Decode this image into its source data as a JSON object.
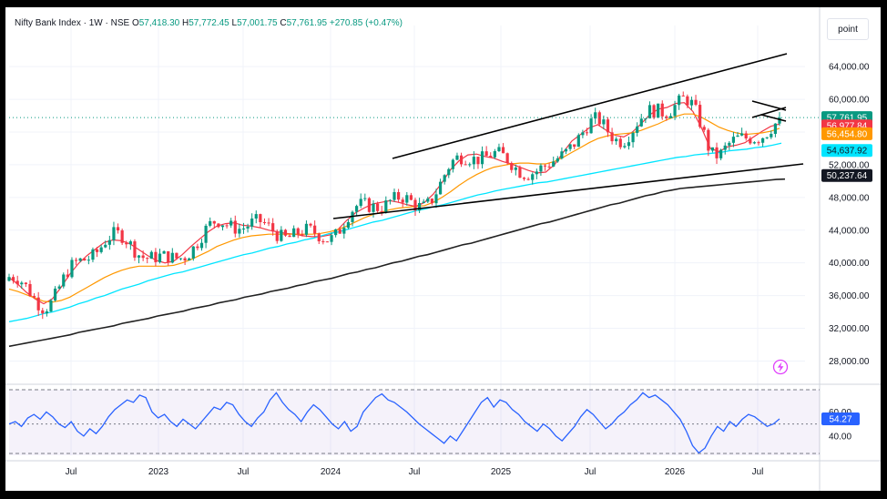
{
  "legend": {
    "symbol": "Nifty Bank Index",
    "interval": "1W",
    "exchange": "NSE",
    "open_label": "O",
    "open": "57,418.30",
    "high_label": "H",
    "high": "57,772.45",
    "low_label": "L",
    "low": "57,001.75",
    "close_label": "C",
    "close": "57,761.95",
    "change": "+270.85 (+0.47%)"
  },
  "unit_label": "point",
  "chart_data": [
    {
      "type": "line",
      "subtype": "candlestick",
      "x_tick_labels": [
        "Jul",
        "2023",
        "Jul",
        "2024",
        "Jul",
        "2025",
        "Jul",
        "2026",
        "Jul"
      ],
      "y_tick_labels": [
        "64,000.00",
        "60,000.00",
        "56,000.00",
        "52,000.00",
        "48,000.00",
        "44,000.00",
        "40,000.00",
        "36,000.00",
        "32,000.00",
        "28,000.00"
      ],
      "ylim": [
        25600,
        66800
      ],
      "last_close": 57761.95,
      "series": [
        {
          "values": [
            38200,
            37400,
            36400,
            35600,
            35000,
            35600,
            37000,
            38600,
            39900,
            40900,
            41700,
            42500,
            42800,
            42700,
            42300,
            41600,
            40900,
            40300,
            40000,
            40200,
            41000,
            42000,
            42900,
            43800,
            44500,
            44800,
            44900,
            44600,
            44500,
            44300,
            44000,
            43800,
            43600,
            43500,
            43300,
            43200,
            43200,
            43400,
            44100,
            45200,
            46100,
            46700,
            47200,
            47400,
            47600,
            47400,
            47100,
            46900,
            47400,
            48400,
            49800,
            51400,
            52500,
            53200,
            53300,
            53000,
            52800,
            52400,
            52100,
            51700,
            51300,
            51000,
            51100,
            52000,
            53500,
            54900,
            55700,
            56500,
            56900,
            56200,
            55600,
            55400,
            56000,
            57000,
            58100,
            58800,
            59000,
            59500,
            59600,
            58500,
            56500,
            54000,
            53600,
            54200,
            54400,
            54700,
            55400,
            56100,
            56700,
            56977.84
          ]
        },
        {
          "values": [
            36800,
            36500,
            36100,
            35700,
            35300,
            35200,
            35400,
            35800,
            36400,
            37000,
            37600,
            38200,
            38700,
            39100,
            39400,
            39600,
            39600,
            39600,
            39600,
            39700,
            40000,
            40400,
            40900,
            41400,
            42000,
            42400,
            42800,
            43100,
            43300,
            43400,
            43500,
            43500,
            43500,
            43500,
            43500,
            43500,
            43600,
            43800,
            44100,
            44500,
            45000,
            45500,
            45900,
            46200,
            46500,
            46700,
            46800,
            46900,
            47000,
            47400,
            48000,
            48700,
            49500,
            50200,
            50800,
            51300,
            51700,
            51900,
            52100,
            52200,
            52200,
            52100,
            52100,
            52400,
            52900,
            53500,
            54100,
            54700,
            55200,
            55500,
            55700,
            55800,
            55900,
            56200,
            56600,
            57000,
            57500,
            57900,
            58200,
            58200,
            57800,
            57200,
            56600,
            56200,
            55900,
            55700,
            55800,
            55900,
            56100,
            56454.8
          ]
        },
        {
          "values": [
            32800,
            33000,
            33200,
            33500,
            33800,
            34000,
            34300,
            34600,
            35000,
            35300,
            35700,
            36000,
            36400,
            36800,
            37100,
            37400,
            37800,
            38100,
            38400,
            38700,
            38900,
            39200,
            39500,
            39800,
            40100,
            40400,
            40700,
            41000,
            41200,
            41500,
            41800,
            42000,
            42300,
            42500,
            42800,
            43000,
            43300,
            43600,
            43800,
            44100,
            44400,
            44700,
            45000,
            45200,
            45500,
            45800,
            46100,
            46400,
            46600,
            46900,
            47100,
            47400,
            47700,
            48000,
            48300,
            48500,
            48800,
            49000,
            49200,
            49400,
            49600,
            49800,
            49900,
            50100,
            50300,
            50500,
            50700,
            50900,
            51100,
            51300,
            51500,
            51700,
            51900,
            52100,
            52300,
            52500,
            52700,
            52900,
            53000,
            53200,
            53300,
            53400,
            53500,
            53700,
            53800,
            53900,
            54100,
            54200,
            54400,
            54637.92
          ]
        },
        {
          "values": [
            29800,
            30000,
            30200,
            30400,
            30600,
            30800,
            31000,
            31200,
            31500,
            31700,
            31900,
            32100,
            32300,
            32600,
            32800,
            33000,
            33200,
            33500,
            33700,
            33900,
            34100,
            34400,
            34600,
            34800,
            35100,
            35300,
            35500,
            35800,
            36000,
            36200,
            36500,
            36700,
            36900,
            37200,
            37400,
            37700,
            37900,
            38100,
            38400,
            38700,
            38900,
            39200,
            39400,
            39700,
            40000,
            40200,
            40500,
            40800,
            41000,
            41300,
            41600,
            41900,
            42200,
            42400,
            42700,
            43000,
            43300,
            43600,
            43900,
            44200,
            44500,
            44800,
            45000,
            45300,
            45600,
            45900,
            46200,
            46500,
            46800,
            47100,
            47300,
            47600,
            47900,
            48200,
            48400,
            48700,
            48900,
            49100,
            49200,
            49300,
            49400,
            49500,
            49600,
            49700,
            49800,
            49900,
            50000,
            50100,
            50200,
            50237.64
          ]
        }
      ],
      "last_value_labels": [
        "57,761.95",
        "56,977.84",
        "56,454.80",
        "54,637.92",
        "50,237.64"
      ],
      "colors": {
        "up": "#089981",
        "down": "#f23645",
        "ma_fast": "#f23645",
        "ma_mid": "#ff9800",
        "ma_slow": "#00e5ff",
        "ma_long": "#212121",
        "trendline": "#000000",
        "last_close": "#089981"
      }
    },
    {
      "type": "line",
      "x_tick_labels": [
        "Jul",
        "2023",
        "Jul",
        "2024",
        "Jul",
        "2025",
        "Jul",
        "2026",
        "Jul"
      ],
      "y_tick_labels": [
        "60.00",
        "40.00"
      ],
      "ylim": [
        24,
        80
      ],
      "band": [
        60,
        40
      ],
      "last_value_label": "54.27",
      "series": [
        {
          "values": [
            50,
            52,
            48,
            55,
            58,
            54,
            60,
            56,
            50,
            47,
            52,
            44,
            40,
            46,
            42,
            48,
            56,
            62,
            66,
            70,
            68,
            74,
            72,
            60,
            55,
            58,
            52,
            48,
            54,
            50,
            46,
            52,
            58,
            64,
            62,
            68,
            66,
            58,
            52,
            48,
            55,
            60,
            70,
            76,
            68,
            62,
            58,
            52,
            60,
            66,
            62,
            56,
            50,
            46,
            52,
            44,
            48,
            60,
            66,
            72,
            75,
            70,
            68,
            64,
            60,
            55,
            50,
            46,
            42,
            38,
            34,
            40,
            36,
            44,
            52,
            60,
            68,
            72,
            64,
            70,
            68,
            62,
            58,
            52,
            48,
            44,
            50,
            46,
            40,
            36,
            42,
            48,
            56,
            62,
            58,
            52,
            46,
            50,
            56,
            60,
            66,
            70,
            76,
            72,
            74,
            70,
            66,
            60,
            54,
            44,
            32,
            26,
            30,
            40,
            48,
            44,
            52,
            48,
            54,
            58,
            56,
            52,
            48,
            50,
            54.27
          ]
        }
      ],
      "colors": {
        "line": "#2962ff",
        "band_fill": "#7e57c2",
        "last_value": "#2962ff"
      }
    }
  ]
}
